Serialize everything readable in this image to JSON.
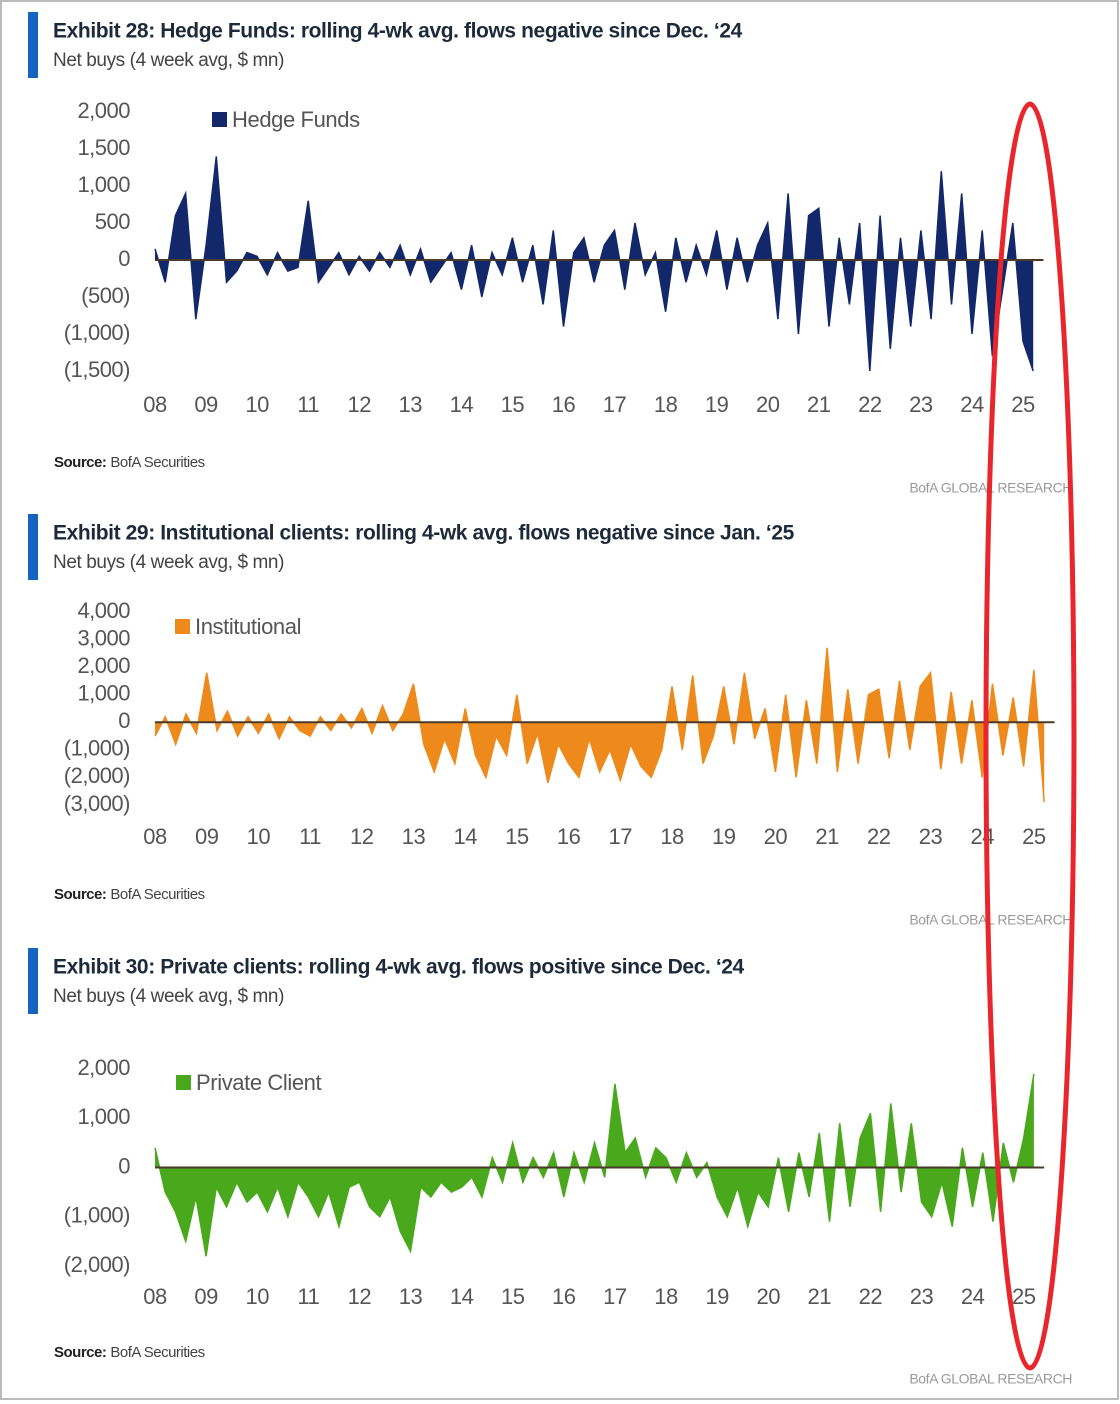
{
  "chart_data": [
    {
      "type": "area",
      "title": "Exhibit 28: Hedge Funds: rolling 4-wk avg. flows negative since Dec. ‘24",
      "subtitle": "Net buys (4 week avg, $ mn)",
      "source_label": "Source:",
      "source": "BofA Securities",
      "brand": "BofA GLOBAL RESEARCH",
      "xlim": [
        2008,
        2025.4
      ],
      "xticks": [
        {
          "value": 2008,
          "label": "08"
        },
        {
          "value": 2009,
          "label": "09"
        },
        {
          "value": 2010,
          "label": "10"
        },
        {
          "value": 2011,
          "label": "11"
        },
        {
          "value": 2012,
          "label": "12"
        },
        {
          "value": 2013,
          "label": "13"
        },
        {
          "value": 2014,
          "label": "14"
        },
        {
          "value": 2015,
          "label": "15"
        },
        {
          "value": 2016,
          "label": "16"
        },
        {
          "value": 2017,
          "label": "17"
        },
        {
          "value": 2018,
          "label": "18"
        },
        {
          "value": 2019,
          "label": "19"
        },
        {
          "value": 2020,
          "label": "20"
        },
        {
          "value": 2021,
          "label": "21"
        },
        {
          "value": 2022,
          "label": "22"
        },
        {
          "value": 2023,
          "label": "23"
        },
        {
          "value": 2024,
          "label": "24"
        },
        {
          "value": 2025,
          "label": "25"
        }
      ],
      "ylim": [
        -1500,
        2000
      ],
      "yticks": [
        {
          "value": 2000,
          "label": "2,000"
        },
        {
          "value": 1500,
          "label": "1,500"
        },
        {
          "value": 1000,
          "label": "1,000"
        },
        500,
        0,
        {
          "value": -500,
          "label": "(500)"
        },
        {
          "value": -1000,
          "label": "(1,000)"
        },
        {
          "value": -1500,
          "label": "(1,500)"
        }
      ],
      "legend": "upper left",
      "x": [
        2008,
        2008.2,
        2008.4,
        2008.6,
        2008.8,
        2009,
        2009.2,
        2009.4,
        2009.6,
        2009.8,
        2010,
        2010.2,
        2010.4,
        2010.6,
        2010.8,
        2011,
        2011.2,
        2011.4,
        2011.6,
        2011.8,
        2012,
        2012.2,
        2012.4,
        2012.6,
        2012.8,
        2013,
        2013.2,
        2013.4,
        2013.6,
        2013.8,
        2014,
        2014.2,
        2014.4,
        2014.6,
        2014.8,
        2015,
        2015.2,
        2015.4,
        2015.6,
        2015.8,
        2016,
        2016.2,
        2016.4,
        2016.6,
        2016.8,
        2017,
        2017.2,
        2017.4,
        2017.6,
        2017.8,
        2018,
        2018.2,
        2018.4,
        2018.6,
        2018.8,
        2019,
        2019.2,
        2019.4,
        2019.6,
        2019.8,
        2020,
        2020.2,
        2020.4,
        2020.6,
        2020.8,
        2021,
        2021.2,
        2021.4,
        2021.6,
        2021.8,
        2022,
        2022.2,
        2022.4,
        2022.6,
        2022.8,
        2023,
        2023.2,
        2023.4,
        2023.6,
        2023.8,
        2024,
        2024.2,
        2024.4,
        2024.6,
        2024.8,
        2025,
        2025.2
      ],
      "series": [
        {
          "name": "Hedge Funds",
          "color": "#13286b",
          "values": [
            150,
            -300,
            600,
            900,
            -800,
            200,
            1400,
            -300,
            -150,
            100,
            50,
            -200,
            100,
            -150,
            -100,
            800,
            -300,
            -100,
            100,
            -200,
            50,
            -150,
            100,
            -100,
            200,
            -200,
            150,
            -300,
            -100,
            100,
            -400,
            200,
            -500,
            100,
            -200,
            300,
            -300,
            200,
            -600,
            400,
            -900,
            100,
            300,
            -300,
            200,
            400,
            -400,
            500,
            -200,
            100,
            -700,
            300,
            -300,
            200,
            -200,
            400,
            -400,
            300,
            -300,
            200,
            500,
            -800,
            900,
            -1000,
            600,
            700,
            -900,
            300,
            -600,
            500,
            -1500,
            600,
            -1200,
            300,
            -900,
            400,
            -800,
            1200,
            -600,
            900,
            -1000,
            400,
            -1300,
            -400,
            500,
            -1100,
            -1500
          ]
        }
      ]
    },
    {
      "type": "area",
      "title": "Exhibit 29: Institutional clients: rolling 4-wk avg. flows negative since Jan. ‘25",
      "subtitle": "Net buys (4 week avg, $ mn)",
      "source_label": "Source:",
      "source": "BofA Securities",
      "brand": "BofA GLOBAL RESEARCH",
      "xlim": [
        2008,
        2025.4
      ],
      "xticks": [
        {
          "value": 2008,
          "label": "08"
        },
        {
          "value": 2009,
          "label": "09"
        },
        {
          "value": 2010,
          "label": "10"
        },
        {
          "value": 2011,
          "label": "11"
        },
        {
          "value": 2012,
          "label": "12"
        },
        {
          "value": 2013,
          "label": "13"
        },
        {
          "value": 2014,
          "label": "14"
        },
        {
          "value": 2015,
          "label": "15"
        },
        {
          "value": 2016,
          "label": "16"
        },
        {
          "value": 2017,
          "label": "17"
        },
        {
          "value": 2018,
          "label": "18"
        },
        {
          "value": 2019,
          "label": "19"
        },
        {
          "value": 2020,
          "label": "20"
        },
        {
          "value": 2021,
          "label": "21"
        },
        {
          "value": 2022,
          "label": "22"
        },
        {
          "value": 2023,
          "label": "23"
        },
        {
          "value": 2024,
          "label": "24"
        },
        {
          "value": 2025,
          "label": "25"
        }
      ],
      "ylim": [
        -3000,
        4000
      ],
      "yticks": [
        {
          "value": 4000,
          "label": "4,000"
        },
        {
          "value": 3000,
          "label": "3,000"
        },
        {
          "value": 2000,
          "label": "2,000"
        },
        {
          "value": 1000,
          "label": "1,000"
        },
        0,
        {
          "value": -1000,
          "label": "(1,000)"
        },
        {
          "value": -2000,
          "label": "(2,000)"
        },
        {
          "value": -3000,
          "label": "(3,000)"
        }
      ],
      "legend": "upper left",
      "x": [
        2008,
        2008.2,
        2008.4,
        2008.6,
        2008.8,
        2009,
        2009.2,
        2009.4,
        2009.6,
        2009.8,
        2010,
        2010.2,
        2010.4,
        2010.6,
        2010.8,
        2011,
        2011.2,
        2011.4,
        2011.6,
        2011.8,
        2012,
        2012.2,
        2012.4,
        2012.6,
        2012.8,
        2013,
        2013.2,
        2013.4,
        2013.6,
        2013.8,
        2014,
        2014.2,
        2014.4,
        2014.6,
        2014.8,
        2015,
        2015.2,
        2015.4,
        2015.6,
        2015.8,
        2016,
        2016.2,
        2016.4,
        2016.6,
        2016.8,
        2017,
        2017.2,
        2017.4,
        2017.6,
        2017.8,
        2018,
        2018.2,
        2018.4,
        2018.6,
        2018.8,
        2019,
        2019.2,
        2019.4,
        2019.6,
        2019.8,
        2020,
        2020.2,
        2020.4,
        2020.6,
        2020.8,
        2021,
        2021.2,
        2021.4,
        2021.6,
        2021.8,
        2022,
        2022.2,
        2022.4,
        2022.6,
        2022.8,
        2023,
        2023.2,
        2023.4,
        2023.6,
        2023.8,
        2024,
        2024.2,
        2024.4,
        2024.6,
        2024.8,
        2025,
        2025.2
      ],
      "series": [
        {
          "name": "Institutional",
          "color": "#ee8a1c",
          "values": [
            -500,
            200,
            -800,
            300,
            -400,
            1800,
            -300,
            400,
            -500,
            200,
            -400,
            300,
            -600,
            200,
            -300,
            -500,
            200,
            -300,
            300,
            -200,
            500,
            -400,
            600,
            -300,
            300,
            1400,
            -800,
            -1800,
            -600,
            -1500,
            500,
            -1200,
            -2000,
            -500,
            -1200,
            1000,
            -1500,
            -400,
            -2200,
            -800,
            -1500,
            -2000,
            -600,
            -1800,
            -1000,
            -2100,
            -800,
            -1600,
            -2000,
            -1000,
            1300,
            -1000,
            1700,
            -1500,
            -500,
            1300,
            -800,
            1800,
            -600,
            500,
            -1800,
            1000,
            -2000,
            800,
            -1500,
            2700,
            -1800,
            1200,
            -1500,
            1000,
            1200,
            -1300,
            1500,
            -1000,
            1300,
            1800,
            -1700,
            1100,
            -1500,
            800,
            -2000,
            1400,
            -1200,
            900,
            -1600,
            1900,
            -2900
          ]
        }
      ]
    },
    {
      "type": "area",
      "title": "Exhibit 30: Private clients: rolling 4-wk avg. flows positive since Dec. ‘24",
      "subtitle": "Net buys (4 week avg, $ mn)",
      "source_label": "Source:",
      "source": "BofA Securities",
      "brand": "BofA GLOBAL RESEARCH",
      "xlim": [
        2008,
        2025.4
      ],
      "xticks": [
        {
          "value": 2008,
          "label": "08"
        },
        {
          "value": 2009,
          "label": "09"
        },
        {
          "value": 2010,
          "label": "10"
        },
        {
          "value": 2011,
          "label": "11"
        },
        {
          "value": 2012,
          "label": "12"
        },
        {
          "value": 2013,
          "label": "13"
        },
        {
          "value": 2014,
          "label": "14"
        },
        {
          "value": 2015,
          "label": "15"
        },
        {
          "value": 2016,
          "label": "16"
        },
        {
          "value": 2017,
          "label": "17"
        },
        {
          "value": 2018,
          "label": "18"
        },
        {
          "value": 2019,
          "label": "19"
        },
        {
          "value": 2020,
          "label": "20"
        },
        {
          "value": 2021,
          "label": "21"
        },
        {
          "value": 2022,
          "label": "22"
        },
        {
          "value": 2023,
          "label": "23"
        },
        {
          "value": 2024,
          "label": "24"
        },
        {
          "value": 2025,
          "label": "25"
        }
      ],
      "ylim": [
        -2000,
        2000
      ],
      "yticks": [
        {
          "value": 2000,
          "label": "2,000"
        },
        {
          "value": 1000,
          "label": "1,000"
        },
        0,
        {
          "value": -1000,
          "label": "(1,000)"
        },
        {
          "value": -2000,
          "label": "(2,000)"
        }
      ],
      "legend": "upper left",
      "x": [
        2008,
        2008.2,
        2008.4,
        2008.6,
        2008.8,
        2009,
        2009.2,
        2009.4,
        2009.6,
        2009.8,
        2010,
        2010.2,
        2010.4,
        2010.6,
        2010.8,
        2011,
        2011.2,
        2011.4,
        2011.6,
        2011.8,
        2012,
        2012.2,
        2012.4,
        2012.6,
        2012.8,
        2013,
        2013.2,
        2013.4,
        2013.6,
        2013.8,
        2014,
        2014.2,
        2014.4,
        2014.6,
        2014.8,
        2015,
        2015.2,
        2015.4,
        2015.6,
        2015.8,
        2016,
        2016.2,
        2016.4,
        2016.6,
        2016.8,
        2017,
        2017.2,
        2017.4,
        2017.6,
        2017.8,
        2018,
        2018.2,
        2018.4,
        2018.6,
        2018.8,
        2019,
        2019.2,
        2019.4,
        2019.6,
        2019.8,
        2020,
        2020.2,
        2020.4,
        2020.6,
        2020.8,
        2021,
        2021.2,
        2021.4,
        2021.6,
        2021.8,
        2022,
        2022.2,
        2022.4,
        2022.6,
        2022.8,
        2023,
        2023.2,
        2023.4,
        2023.6,
        2023.8,
        2024,
        2024.2,
        2024.4,
        2024.6,
        2024.8,
        2025,
        2025.2
      ],
      "series": [
        {
          "name": "Private Client",
          "color": "#4aa81c",
          "values": [
            400,
            -500,
            -900,
            -1500,
            -600,
            -1800,
            -400,
            -800,
            -300,
            -700,
            -500,
            -900,
            -400,
            -1000,
            -300,
            -600,
            -1000,
            -500,
            -1200,
            -400,
            -300,
            -800,
            -1000,
            -600,
            -1300,
            -1700,
            -400,
            -600,
            -300,
            -500,
            -400,
            -200,
            -600,
            200,
            -300,
            500,
            -300,
            200,
            -200,
            300,
            -600,
            300,
            -300,
            500,
            -200,
            1700,
            300,
            600,
            -200,
            400,
            200,
            -300,
            300,
            -200,
            100,
            -600,
            -1000,
            -400,
            -1200,
            -500,
            -800,
            200,
            -900,
            300,
            -600,
            700,
            -1100,
            900,
            -800,
            600,
            1100,
            -900,
            1300,
            -500,
            900,
            -700,
            -1000,
            -300,
            -1200,
            400,
            -800,
            300,
            -1100,
            500,
            -300,
            600,
            1900
          ]
        }
      ]
    }
  ]
}
